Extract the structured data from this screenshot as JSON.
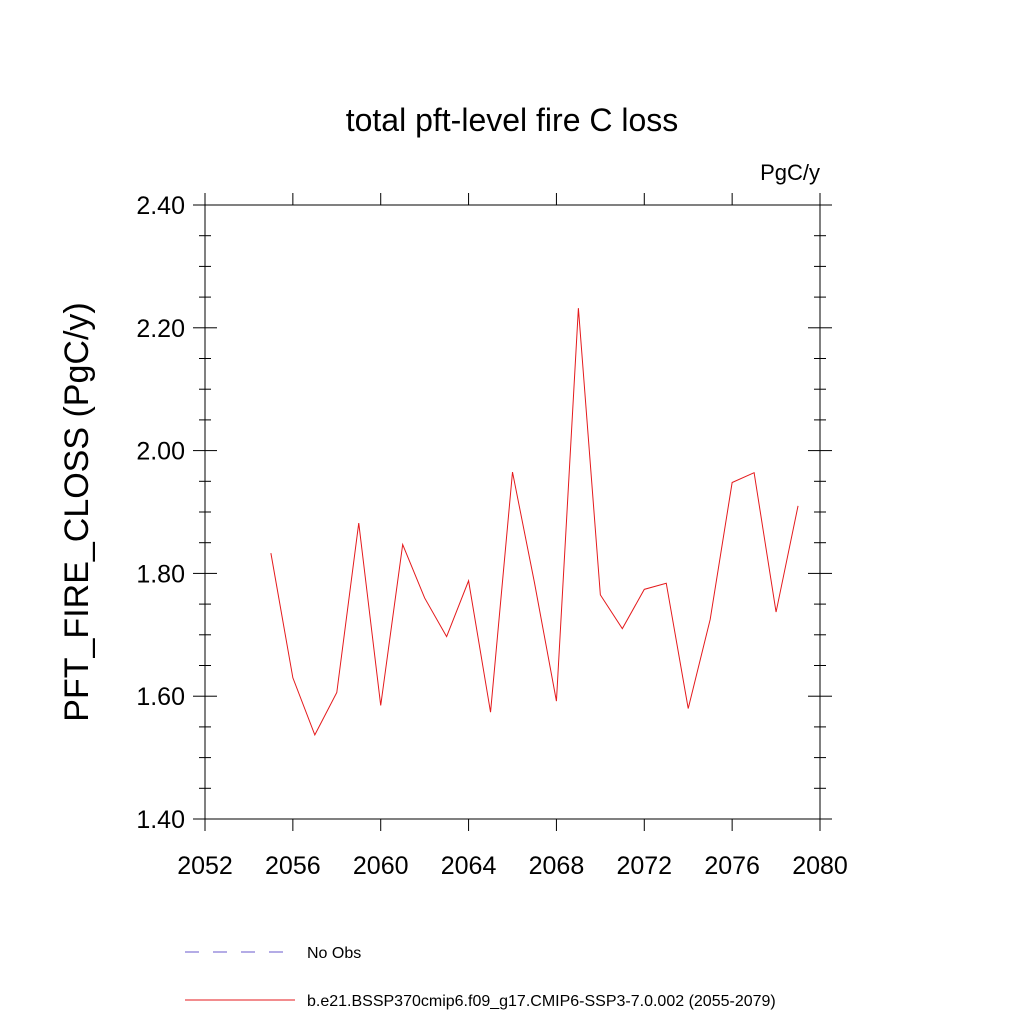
{
  "chart_data": {
    "type": "line",
    "title": "total pft-level fire C loss",
    "units_label": "PgC/y",
    "ylabel": "PFT_FIRE_CLOSS  (PgC/y)",
    "xlabel": "",
    "xlim": [
      2052,
      2080
    ],
    "ylim": [
      1.4,
      2.4
    ],
    "x_ticks": [
      "2052",
      "2056",
      "2060",
      "2064",
      "2068",
      "2072",
      "2076",
      "2080"
    ],
    "y_ticks": [
      "1.40",
      "1.60",
      "1.80",
      "2.00",
      "2.20",
      "2.40"
    ],
    "grid": false,
    "legend_placement": "bottom",
    "series": [
      {
        "name": "b.e21.BSSP370cmip6.f09_g17.CMIP6-SSP3-7.0.002 (2055-2079)",
        "color": "#e41a1c",
        "style": "solid",
        "x": [
          2055,
          2056,
          2057,
          2058,
          2059,
          2060,
          2061,
          2062,
          2063,
          2064,
          2065,
          2066,
          2067,
          2068,
          2069,
          2070,
          2071,
          2072,
          2073,
          2074,
          2075,
          2076,
          2077,
          2078,
          2079
        ],
        "values": [
          1.833,
          1.63,
          1.537,
          1.606,
          1.882,
          1.585,
          1.847,
          1.76,
          1.697,
          1.788,
          1.574,
          1.965,
          1.785,
          1.592,
          2.232,
          1.765,
          1.71,
          1.774,
          1.784,
          1.58,
          1.725,
          1.948,
          1.964,
          1.737,
          1.91
        ]
      }
    ],
    "legend": [
      {
        "label": "No Obs",
        "color": "#6a5acd",
        "style": "dashed"
      },
      {
        "label": "b.e21.BSSP370cmip6.f09_g17.CMIP6-SSP3-7.0.002 (2055-2079)",
        "color": "#e41a1c",
        "style": "solid"
      }
    ]
  }
}
